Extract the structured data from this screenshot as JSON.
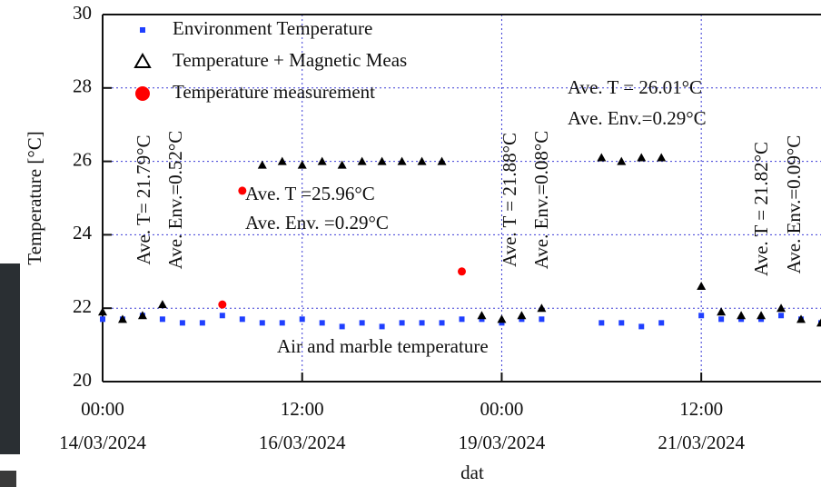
{
  "chart_data": {
    "type": "scatter",
    "y_label": "Temperature [°C]",
    "x_label": "dat",
    "x": [
      "2024-03-14T00:00",
      "2024-03-14T06:00",
      "2024-03-14T12:00",
      "2024-03-14T18:00",
      "2024-03-15T00:00",
      "2024-03-15T06:00",
      "2024-03-15T12:00",
      "2024-03-15T18:00",
      "2024-03-16T00:00",
      "2024-03-16T06:00",
      "2024-03-16T12:00",
      "2024-03-16T18:00",
      "2024-03-17T00:00",
      "2024-03-17T06:00",
      "2024-03-17T12:00",
      "2024-03-17T18:00",
      "2024-03-18T00:00",
      "2024-03-18T06:00",
      "2024-03-18T12:00",
      "2024-03-18T18:00",
      "2024-03-19T00:00",
      "2024-03-19T06:00",
      "2024-03-19T12:00",
      "2024-03-19T18:00",
      "2024-03-20T00:00",
      "2024-03-20T06:00",
      "2024-03-20T12:00",
      "2024-03-20T18:00",
      "2024-03-21T00:00",
      "2024-03-21T06:00",
      "2024-03-21T12:00",
      "2024-03-21T18:00",
      "2024-03-22T00:00",
      "2024-03-22T06:00",
      "2024-03-22T12:00",
      "2024-03-22T18:00",
      "2024-03-23T00:00"
    ],
    "series": [
      {
        "name": "Environment Temperature",
        "color": "#1f3fff",
        "marker": "square",
        "values": [
          21.7,
          21.7,
          21.8,
          21.7,
          21.6,
          21.6,
          21.8,
          21.7,
          21.6,
          21.6,
          21.7,
          21.6,
          21.5,
          21.6,
          21.5,
          21.6,
          21.6,
          21.6,
          21.7,
          21.7,
          21.6,
          21.7,
          21.7,
          null,
          null,
          21.6,
          21.6,
          21.5,
          21.6,
          null,
          21.8,
          21.7,
          21.7,
          21.7,
          21.8,
          21.7,
          21.6
        ]
      },
      {
        "name": "Temperature + Magnetic Meas",
        "color": "#000000",
        "marker": "triangle",
        "values": [
          21.9,
          21.7,
          21.8,
          22.1,
          null,
          null,
          null,
          null,
          25.9,
          26.0,
          25.9,
          26.0,
          25.9,
          26.0,
          26.0,
          26.0,
          26.0,
          26.0,
          null,
          21.8,
          21.7,
          21.8,
          22.0,
          null,
          null,
          26.1,
          26.0,
          26.1,
          26.1,
          null,
          22.6,
          21.9,
          21.8,
          21.8,
          22.0,
          21.7,
          21.6
        ]
      },
      {
        "name": "Temperature measurement",
        "color": "#ff0000",
        "marker": "circle",
        "values": [
          null,
          null,
          null,
          null,
          null,
          null,
          22.1,
          25.2,
          null,
          null,
          null,
          null,
          null,
          null,
          null,
          null,
          null,
          null,
          23.0,
          null,
          null,
          null,
          null,
          null,
          null,
          null,
          null,
          null,
          null,
          null,
          null,
          null,
          null,
          null,
          null,
          null,
          null
        ]
      }
    ],
    "xlim": [
      "2024-03-14T00:00",
      "2024-03-23T00:00"
    ],
    "xticks": [
      {
        "value": "2024-03-14T00:00",
        "label": "00:00 14/03/2024"
      },
      {
        "value": "2024-03-16T12:00",
        "label": "12:00 16/03/2024"
      },
      {
        "value": "2024-03-19T00:00",
        "label": "00:00 19/03/2024"
      },
      {
        "value": "2024-03-21T12:00",
        "label": "12:00 21/03/2024"
      }
    ],
    "ylim": [
      20,
      30
    ],
    "yticks": [
      20,
      22,
      24,
      26,
      28,
      30
    ],
    "grid": true,
    "legend": "upper left",
    "annotations": [
      "Ave. T= 21.79°C",
      "Ave. Env.=0.52°C",
      "Ave. T =25.96°C",
      "Ave. Env. =0.29°C",
      "Ave. T = 21.88°C",
      "Ave. Env.=0.08°C",
      "Ave. T = 26.01°C",
      "Ave. Env.=0.29°C",
      "Ave. T = 21.82°C",
      "Ave. Env.=0.09°C",
      "Air and marble temperature"
    ]
  }
}
